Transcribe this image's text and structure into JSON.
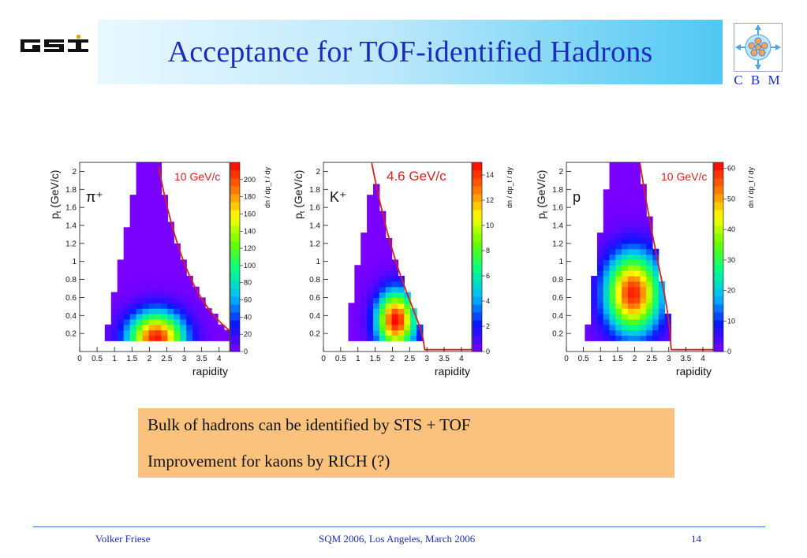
{
  "slide": {
    "title": "Acceptance for TOF-identified Hadrons",
    "cbm_logo_text": "C B M",
    "footer": {
      "author": "Volker Friese",
      "conference": "SQM 2006, Los Angeles, March 2006",
      "page": "14"
    },
    "bullets": [
      "Bulk of hadrons can be identified by STS + TOF",
      "Improvement for kaons by RICH (?)"
    ],
    "colors": {
      "title_text": "#1a2dbd",
      "title_bar_gradient": [
        "#e9f8ff",
        "#50c8f2"
      ],
      "note_box": "#fbc27e",
      "footer_rule": "#3a6fd8",
      "acceptance_line": "#d42020",
      "colormap": [
        "#7a00ff",
        "#0a14ff",
        "#00b8ff",
        "#00ff8c",
        "#66ff00",
        "#ffff00",
        "#ff7800",
        "#ff0000"
      ]
    }
  },
  "chart_data": [
    {
      "type": "heatmap",
      "particle_label": "π⁺",
      "momentum_label": "10 GeV/c",
      "xlabel": "rapidity",
      "ylabel": "p_t (GeV/c)",
      "zlabel": "dn / dp_t / dy",
      "xlim": [
        0,
        4.3
      ],
      "ylim": [
        0,
        2.1
      ],
      "x_ticks": [
        "0",
        "0.5",
        "1",
        "1.5",
        "2",
        "2.5",
        "3",
        "3.5",
        "4"
      ],
      "y_ticks": [
        "0.2",
        "0.4",
        "0.6",
        "0.8",
        "1",
        "1.2",
        "1.4",
        "1.6",
        "1.8",
        "2"
      ],
      "z_range": [
        0,
        220
      ],
      "z_ticks": [
        "0",
        "20",
        "40",
        "60",
        "80",
        "100",
        "120",
        "140",
        "160",
        "180",
        "200"
      ],
      "acceptance_p_max": 10,
      "peak": {
        "rapidity": 2.2,
        "pt": 0.15,
        "value": 215
      }
    },
    {
      "type": "heatmap",
      "particle_label": "K⁺",
      "momentum_label": "4.6 GeV/c",
      "xlabel": "rapidity",
      "ylabel": "p_t (GeV/c)",
      "zlabel": "dn / dp_t / dy",
      "xlim": [
        0,
        4.3
      ],
      "ylim": [
        0,
        2.1
      ],
      "x_ticks": [
        "0",
        "0.5",
        "1",
        "1.5",
        "2",
        "2.5",
        "3",
        "3.5",
        "4"
      ],
      "y_ticks": [
        "0.2",
        "0.4",
        "0.6",
        "0.8",
        "1",
        "1.2",
        "1.4",
        "1.6",
        "1.8",
        "2"
      ],
      "z_range": [
        0,
        15
      ],
      "z_ticks": [
        "0",
        "2",
        "4",
        "6",
        "8",
        "10",
        "12",
        "14"
      ],
      "acceptance_p_max": 4.6,
      "peak": {
        "rapidity": 2.1,
        "pt": 0.35,
        "value": 15
      }
    },
    {
      "type": "heatmap",
      "particle_label": "p",
      "momentum_label": "10 GeV/c",
      "xlabel": "rapidity",
      "ylabel": "p_t (GeV/c)",
      "zlabel": "dn / dp_t / dy",
      "xlim": [
        0,
        4.3
      ],
      "ylim": [
        0,
        2.1
      ],
      "x_ticks": [
        "0",
        "0.5",
        "1",
        "1.5",
        "2",
        "2.5",
        "3",
        "3.5",
        "4"
      ],
      "y_ticks": [
        "0.2",
        "0.4",
        "0.6",
        "0.8",
        "1",
        "1.2",
        "1.4",
        "1.6",
        "1.8",
        "2"
      ],
      "z_range": [
        0,
        62
      ],
      "z_ticks": [
        "0",
        "10",
        "20",
        "30",
        "40",
        "50",
        "60"
      ],
      "acceptance_p_max": 10,
      "peak": {
        "rapidity": 1.95,
        "pt": 0.65,
        "value": 60
      }
    }
  ]
}
